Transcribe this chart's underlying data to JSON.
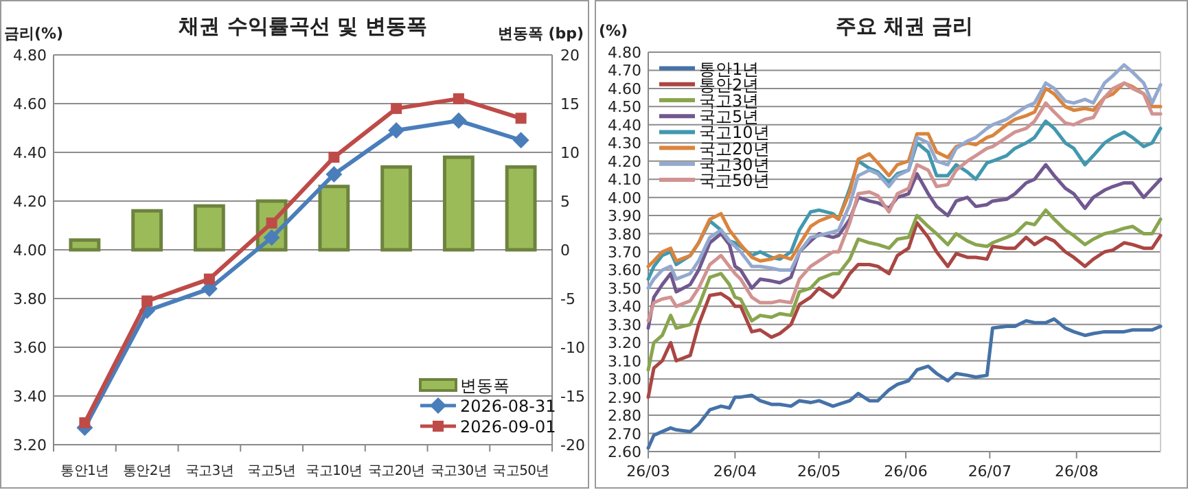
{
  "chart_data": [
    {
      "type": "bar",
      "title": "채권 수익률곡선 및 변동폭",
      "ylabel": "금리(%)",
      "y2label": "변동폭 (bp)",
      "categories": [
        "통안1년",
        "통안2년",
        "국고3년",
        "국고5년",
        "국고10년",
        "국고20년",
        "국고30년",
        "국고50년"
      ],
      "ylim": [
        3.2,
        4.8
      ],
      "yticks": [
        {
          "value": 3.2,
          "label": "3.20"
        },
        {
          "value": 3.4,
          "label": "3.40"
        },
        {
          "value": 3.6,
          "label": "3.60"
        },
        {
          "value": 3.8,
          "label": "3.80"
        },
        {
          "value": 4.0,
          "label": "4.00"
        },
        {
          "value": 4.2,
          "label": "4.20"
        },
        {
          "value": 4.4,
          "label": "4.40"
        },
        {
          "value": 4.6,
          "label": "4.60"
        },
        {
          "value": 4.8,
          "label": "4.80"
        }
      ],
      "y2lim": [
        -20,
        20
      ],
      "y2ticks": [
        -20,
        -15,
        -10,
        -5,
        0,
        5,
        10,
        15,
        20
      ],
      "series": [
        {
          "name": "변동폭",
          "axis": "y2",
          "color": "#9bbb59",
          "values": [
            1,
            4,
            4.5,
            5,
            6.5,
            8.5,
            9.5,
            8.5
          ]
        },
        {
          "name": "2026-08-31",
          "type": "line",
          "color": "#4a7ebb",
          "marker": "diamond",
          "values": [
            3.27,
            3.75,
            3.84,
            4.05,
            4.31,
            4.49,
            4.53,
            4.45
          ]
        },
        {
          "name": "2026-09-01",
          "type": "line",
          "color": "#be4b48",
          "marker": "square",
          "values": [
            3.29,
            3.79,
            3.88,
            4.11,
            4.38,
            4.58,
            4.62,
            4.54
          ]
        }
      ],
      "grid": "y",
      "legend": "bottom right"
    },
    {
      "type": "line",
      "title": "주요 채권 금리",
      "ylabel": "(%)",
      "x": [
        "2026-03-01",
        "2026-03-03",
        "2026-03-06",
        "2026-03-09",
        "2026-03-11",
        "2026-03-16",
        "2026-03-19",
        "2026-03-23",
        "2026-03-27",
        "2026-03-30",
        "2026-04-01",
        "2026-04-03",
        "2026-04-07",
        "2026-04-10",
        "2026-04-14",
        "2026-04-17",
        "2026-04-21",
        "2026-04-24",
        "2026-04-28",
        "2026-05-01",
        "2026-05-06",
        "2026-05-08",
        "2026-05-12",
        "2026-05-15",
        "2026-05-19",
        "2026-05-22",
        "2026-05-26",
        "2026-05-29",
        "2026-06-02",
        "2026-06-05",
        "2026-06-09",
        "2026-06-12",
        "2026-06-16",
        "2026-06-19",
        "2026-06-23",
        "2026-06-26",
        "2026-06-30",
        "2026-07-02",
        "2026-07-07",
        "2026-07-10",
        "2026-07-14",
        "2026-07-17",
        "2026-07-21",
        "2026-07-24",
        "2026-07-28",
        "2026-07-31",
        "2026-08-04",
        "2026-08-07",
        "2026-08-11",
        "2026-08-14",
        "2026-08-18",
        "2026-08-21",
        "2026-08-25",
        "2026-08-28",
        "2026-08-31"
      ],
      "xlim": [
        "2026-03-01",
        "2026-08-31"
      ],
      "xticks": [
        {
          "value": "2026-03-01",
          "label": "26/03"
        },
        {
          "value": "2026-04-01",
          "label": "26/04"
        },
        {
          "value": "2026-05-01",
          "label": "26/05"
        },
        {
          "value": "2026-06-01",
          "label": "26/06"
        },
        {
          "value": "2026-07-01",
          "label": "26/07"
        },
        {
          "value": "2026-08-01",
          "label": "26/08"
        }
      ],
      "ylim": [
        2.6,
        4.8
      ],
      "yticks": [
        {
          "value": 2.6,
          "label": "2.60"
        },
        {
          "value": 2.7,
          "label": "2.70"
        },
        {
          "value": 2.8,
          "label": "2.80"
        },
        {
          "value": 2.9,
          "label": "2.90"
        },
        {
          "value": 3.0,
          "label": "3.00"
        },
        {
          "value": 3.1,
          "label": "3.10"
        },
        {
          "value": 3.2,
          "label": "3.20"
        },
        {
          "value": 3.3,
          "label": "3.30"
        },
        {
          "value": 3.4,
          "label": "3.40"
        },
        {
          "value": 3.5,
          "label": "3.50"
        },
        {
          "value": 3.6,
          "label": "3.60"
        },
        {
          "value": 3.7,
          "label": "3.70"
        },
        {
          "value": 3.8,
          "label": "3.80"
        },
        {
          "value": 3.9,
          "label": "3.90"
        },
        {
          "value": 4.0,
          "label": "4.00"
        },
        {
          "value": 4.1,
          "label": "4.10"
        },
        {
          "value": 4.2,
          "label": "4.20"
        },
        {
          "value": 4.3,
          "label": "4.30"
        },
        {
          "value": 4.4,
          "label": "4.40"
        },
        {
          "value": 4.5,
          "label": "4.50"
        },
        {
          "value": 4.6,
          "label": "4.60"
        },
        {
          "value": 4.7,
          "label": "4.70"
        },
        {
          "value": 4.8,
          "label": "4.80"
        }
      ],
      "series": [
        {
          "name": "통안1년",
          "color": "#4572a7",
          "values": [
            2.62,
            2.69,
            2.71,
            2.73,
            2.72,
            2.71,
            2.75,
            2.83,
            2.85,
            2.84,
            2.9,
            2.9,
            2.91,
            2.88,
            2.86,
            2.86,
            2.85,
            2.88,
            2.87,
            2.88,
            2.85,
            2.86,
            2.88,
            2.92,
            2.88,
            2.88,
            2.94,
            2.97,
            2.99,
            3.05,
            3.07,
            3.03,
            2.99,
            3.03,
            3.02,
            3.01,
            3.02,
            3.28,
            3.29,
            3.29,
            3.32,
            3.31,
            3.31,
            3.33,
            3.28,
            3.26,
            3.24,
            3.25,
            3.26,
            3.26,
            3.26,
            3.27,
            3.27,
            3.27,
            3.29
          ]
        },
        {
          "name": "통안2년",
          "color": "#aa4643",
          "values": [
            2.9,
            3.06,
            3.1,
            3.2,
            3.1,
            3.13,
            3.3,
            3.46,
            3.47,
            3.44,
            3.4,
            3.4,
            3.26,
            3.27,
            3.23,
            3.25,
            3.3,
            3.41,
            3.45,
            3.5,
            3.45,
            3.48,
            3.58,
            3.63,
            3.63,
            3.62,
            3.58,
            3.68,
            3.72,
            3.86,
            3.78,
            3.7,
            3.62,
            3.69,
            3.67,
            3.67,
            3.66,
            3.73,
            3.72,
            3.72,
            3.78,
            3.74,
            3.78,
            3.76,
            3.7,
            3.67,
            3.62,
            3.66,
            3.7,
            3.71,
            3.75,
            3.74,
            3.72,
            3.72,
            3.79
          ]
        },
        {
          "name": "국고3년",
          "color": "#89a54e",
          "values": [
            3.05,
            3.2,
            3.24,
            3.35,
            3.28,
            3.3,
            3.4,
            3.56,
            3.58,
            3.52,
            3.45,
            3.44,
            3.32,
            3.35,
            3.34,
            3.36,
            3.35,
            3.48,
            3.5,
            3.55,
            3.58,
            3.58,
            3.66,
            3.77,
            3.75,
            3.74,
            3.72,
            3.77,
            3.78,
            3.9,
            3.84,
            3.8,
            3.74,
            3.8,
            3.76,
            3.74,
            3.73,
            3.75,
            3.78,
            3.8,
            3.86,
            3.85,
            3.93,
            3.88,
            3.82,
            3.79,
            3.74,
            3.77,
            3.8,
            3.81,
            3.83,
            3.84,
            3.8,
            3.8,
            3.88
          ]
        },
        {
          "name": "국고5년",
          "color": "#71588f",
          "values": [
            3.28,
            3.45,
            3.52,
            3.58,
            3.48,
            3.52,
            3.6,
            3.75,
            3.8,
            3.74,
            3.62,
            3.6,
            3.5,
            3.55,
            3.54,
            3.53,
            3.56,
            3.7,
            3.76,
            3.8,
            3.78,
            3.79,
            3.88,
            4.0,
            3.98,
            3.97,
            3.94,
            4.0,
            4.02,
            4.13,
            4.02,
            3.95,
            3.9,
            3.98,
            4.0,
            3.95,
            3.96,
            3.98,
            3.99,
            4.02,
            4.08,
            4.1,
            4.18,
            4.12,
            4.05,
            4.02,
            3.94,
            4.0,
            4.04,
            4.06,
            4.08,
            4.08,
            4.0,
            4.05,
            4.1
          ]
        },
        {
          "name": "국고10년",
          "color": "#4198af",
          "values": [
            3.55,
            3.62,
            3.68,
            3.7,
            3.63,
            3.68,
            3.75,
            3.87,
            3.82,
            3.76,
            3.75,
            3.73,
            3.68,
            3.7,
            3.67,
            3.66,
            3.7,
            3.82,
            3.92,
            3.93,
            3.91,
            3.88,
            4.05,
            4.2,
            4.16,
            4.14,
            4.08,
            4.13,
            4.15,
            4.3,
            4.25,
            4.12,
            4.12,
            4.18,
            4.14,
            4.1,
            4.19,
            4.2,
            4.23,
            4.27,
            4.3,
            4.33,
            4.42,
            4.38,
            4.3,
            4.27,
            4.18,
            4.23,
            4.3,
            4.33,
            4.36,
            4.33,
            4.28,
            4.3,
            4.38
          ]
        },
        {
          "name": "국고20년",
          "color": "#db843d",
          "values": [
            3.62,
            3.65,
            3.7,
            3.72,
            3.65,
            3.68,
            3.75,
            3.88,
            3.91,
            3.82,
            3.78,
            3.74,
            3.67,
            3.65,
            3.66,
            3.68,
            3.66,
            3.74,
            3.84,
            3.87,
            3.9,
            3.88,
            4.03,
            4.21,
            4.24,
            4.19,
            4.12,
            4.18,
            4.2,
            4.35,
            4.35,
            4.25,
            4.22,
            4.28,
            4.3,
            4.29,
            4.33,
            4.34,
            4.4,
            4.43,
            4.45,
            4.47,
            4.6,
            4.57,
            4.5,
            4.48,
            4.49,
            4.48,
            4.55,
            4.57,
            4.63,
            4.61,
            4.57,
            4.5,
            4.5
          ]
        },
        {
          "name": "국고30년",
          "color": "#93a9cf",
          "values": [
            3.5,
            3.55,
            3.6,
            3.62,
            3.55,
            3.58,
            3.65,
            3.78,
            3.82,
            3.76,
            3.73,
            3.7,
            3.62,
            3.62,
            3.61,
            3.6,
            3.6,
            3.7,
            3.78,
            3.79,
            3.81,
            3.82,
            3.96,
            4.12,
            4.15,
            4.13,
            4.06,
            4.12,
            4.15,
            4.33,
            4.3,
            4.2,
            4.18,
            4.27,
            4.31,
            4.33,
            4.38,
            4.4,
            4.43,
            4.46,
            4.5,
            4.52,
            4.63,
            4.6,
            4.53,
            4.52,
            4.54,
            4.52,
            4.63,
            4.67,
            4.73,
            4.69,
            4.63,
            4.52,
            4.62
          ]
        },
        {
          "name": "국고50년",
          "color": "#d19392",
          "values": [
            3.32,
            3.42,
            3.44,
            3.45,
            3.4,
            3.43,
            3.5,
            3.63,
            3.68,
            3.62,
            3.58,
            3.55,
            3.45,
            3.42,
            3.42,
            3.43,
            3.42,
            3.55,
            3.62,
            3.65,
            3.7,
            3.7,
            3.86,
            4.02,
            4.03,
            4.01,
            3.92,
            4.02,
            4.05,
            4.18,
            4.15,
            4.06,
            4.07,
            4.15,
            4.2,
            4.23,
            4.27,
            4.28,
            4.33,
            4.36,
            4.38,
            4.42,
            4.52,
            4.47,
            4.41,
            4.4,
            4.43,
            4.44,
            4.55,
            4.6,
            4.63,
            4.6,
            4.57,
            4.46,
            4.46
          ]
        }
      ],
      "grid": "y",
      "legend": "top left"
    }
  ]
}
